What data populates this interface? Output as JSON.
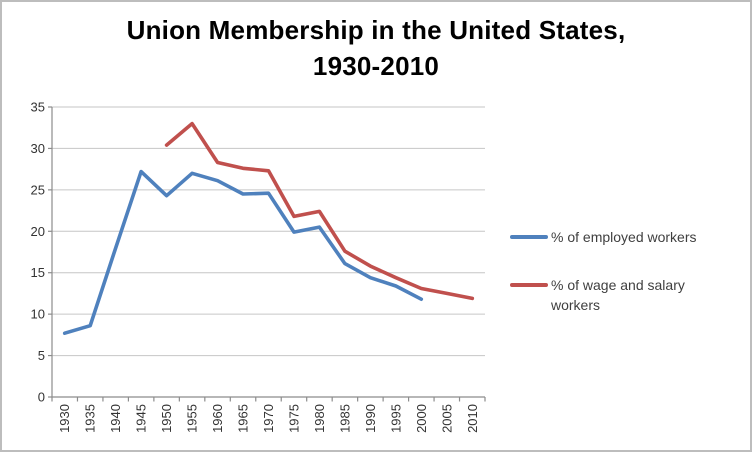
{
  "title": {
    "line1": "Union Membership in the United States,",
    "line2": "1930-2010"
  },
  "legend": {
    "items": [
      {
        "label": "% of employed workers",
        "color": "#4F81BD"
      },
      {
        "label": "% of wage and salary workers",
        "color": "#C0504D"
      }
    ]
  },
  "chart_data": {
    "type": "line",
    "title": "Union Membership in the United States, 1930-2010",
    "categories": [
      "1930",
      "1935",
      "1940",
      "1945",
      "1950",
      "1955",
      "1960",
      "1965",
      "1970",
      "1975",
      "1980",
      "1985",
      "1990",
      "1995",
      "2000",
      "2005",
      "2010"
    ],
    "series": [
      {
        "name": "% of employed workers",
        "color": "#4F81BD",
        "values": [
          7.7,
          8.6,
          18.0,
          27.2,
          24.3,
          27.0,
          26.1,
          24.5,
          24.6,
          19.9,
          20.5,
          16.1,
          14.4,
          13.4,
          11.8,
          null,
          null
        ]
      },
      {
        "name": "% of wage and salary workers",
        "color": "#C0504D",
        "values": [
          null,
          null,
          null,
          null,
          30.4,
          33.0,
          28.3,
          27.6,
          27.3,
          21.8,
          22.4,
          17.6,
          15.8,
          14.4,
          13.1,
          12.5,
          11.9
        ]
      }
    ],
    "xlabel": "",
    "ylabel": "",
    "ylim": [
      0,
      35
    ],
    "y_ticks": [
      0,
      5,
      10,
      15,
      20,
      25,
      30,
      35
    ],
    "grid": true,
    "legend_position": "right",
    "colors": {
      "grid": "#c6c6c6",
      "axis": "#8c8c8c",
      "tick_text": "#333333"
    }
  }
}
